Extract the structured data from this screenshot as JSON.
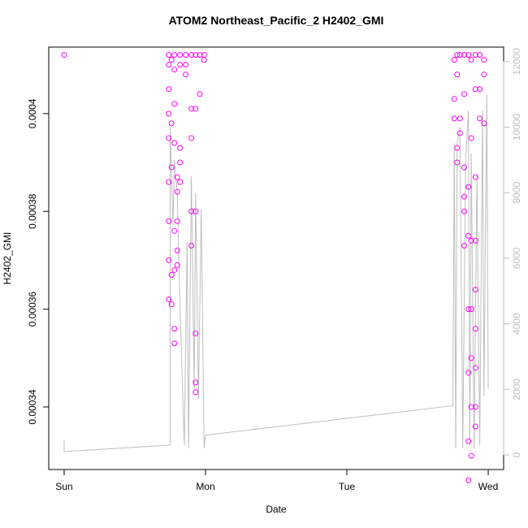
{
  "chart_data": {
    "type": "scatter",
    "title": "ATOM2 Northeast_Pacific_2 H2402_GMI",
    "x_label": "Date",
    "y_label": "H2402_GMI",
    "xlim": [
      -0.109,
      3.109
    ],
    "xticks": [
      {
        "value": 0,
        "label": "Sun"
      },
      {
        "value": 1,
        "label": "Mon"
      },
      {
        "value": 2,
        "label": "Tue"
      },
      {
        "value": 3,
        "label": "Wed"
      }
    ],
    "ylim": [
      0.0003272,
      0.0004136
    ],
    "yticks": [
      0.00034,
      0.00036,
      0.00038,
      0.0004
    ],
    "y2lim": [
      -446,
      12441
    ],
    "y2ticks": [
      0,
      2000,
      4000,
      6000,
      8000,
      10000,
      12000
    ],
    "y2_color": "#bebebe",
    "series": [
      {
        "color": "#ff00ff",
        "x": [
          0,
          0.74,
          0.74,
          0.74,
          0.74,
          0.74,
          0.74,
          0.74,
          0.74,
          0.74,
          0.76,
          0.76,
          0.76,
          0.76,
          0.76,
          0.78,
          0.78,
          0.78,
          0.78,
          0.78,
          0.78,
          0.78,
          0.78,
          0.8,
          0.8,
          0.8,
          0.8,
          0.8,
          0.82,
          0.82,
          0.82,
          0.82,
          0.82,
          0.86,
          0.86,
          0.86,
          0.9,
          0.9,
          0.9,
          0.9,
          0.9,
          0.93,
          0.93,
          0.93,
          0.93,
          0.93,
          0.93,
          0.96,
          0.96,
          0.99,
          0.99,
          2.76,
          2.76,
          2.76,
          2.78,
          2.78,
          2.78,
          2.78,
          2.8,
          2.8,
          2.8,
          2.83,
          2.83,
          2.83,
          2.83,
          2.83,
          2.83,
          2.86,
          2.86,
          2.86,
          2.86,
          2.86,
          2.86,
          2.86,
          2.88,
          2.88,
          2.88,
          2.88,
          2.88,
          2.88,
          2.88,
          2.91,
          2.91,
          2.91,
          2.91,
          2.91,
          2.91,
          2.91,
          2.91,
          2.91,
          2.94,
          2.94,
          2.94,
          2.97,
          2.97,
          2.97
        ],
        "values": [
          0.000412,
          0.000412,
          0.00041,
          0.000405,
          0.0004,
          0.000395,
          0.000386,
          0.000378,
          0.00037,
          0.000362,
          0.000411,
          0.000398,
          0.000389,
          0.000367,
          0.000361,
          0.000412,
          0.000409,
          0.000402,
          0.000394,
          0.000376,
          0.000368,
          0.000356,
          0.000353,
          0.000387,
          0.000384,
          0.000378,
          0.000372,
          0.000369,
          0.000412,
          0.00041,
          0.000393,
          0.00039,
          0.000386,
          0.000412,
          0.00041,
          0.000408,
          0.000412,
          0.000401,
          0.000395,
          0.00038,
          0.000373,
          0.000412,
          0.000401,
          0.00038,
          0.000355,
          0.000345,
          0.000343,
          0.000412,
          0.000404,
          0.000412,
          0.000411,
          0.000411,
          0.000403,
          0.000399,
          0.000412,
          0.000408,
          0.000393,
          0.00039,
          0.000412,
          0.000399,
          0.000396,
          0.000412,
          0.000404,
          0.000389,
          0.000383,
          0.00038,
          0.000373,
          0.000412,
          0.000385,
          0.000375,
          0.00036,
          0.000347,
          0.000333,
          0.000325,
          0.000411,
          0.000395,
          0.000374,
          0.00036,
          0.00035,
          0.00034,
          0.00033,
          0.000412,
          0.000405,
          0.000387,
          0.000374,
          0.000364,
          0.000356,
          0.000348,
          0.00034,
          0.000336,
          0.000412,
          0.000405,
          0.000399,
          0.000411,
          0.000408,
          0.000398
        ]
      },
      {
        "color": "#bebebe",
        "axis": "y2",
        "x": [
          0,
          0,
          0.75,
          0.75,
          0.77,
          0.78,
          0.8,
          0.82,
          0.85,
          0.87,
          0.88,
          0.9,
          0.92,
          0.93,
          0.95,
          0.97,
          0.99,
          1.0,
          2.75,
          2.76,
          2.77,
          2.78,
          2.8,
          2.82,
          2.84,
          2.86,
          2.87,
          2.88,
          2.9,
          2.92,
          2.94,
          2.96,
          2.97,
          2.99,
          3.0
        ],
        "values": [
          450,
          100,
          300,
          10000,
          7000,
          9000,
          8000,
          4500,
          300,
          6500,
          200,
          8500,
          2000,
          8000,
          1700,
          7500,
          200,
          600,
          1500,
          9500,
          200,
          9500,
          10000,
          200,
          9000,
          10500,
          300,
          9200,
          200,
          8500,
          300,
          10500,
          1800,
          11000,
          2000
        ]
      }
    ]
  }
}
